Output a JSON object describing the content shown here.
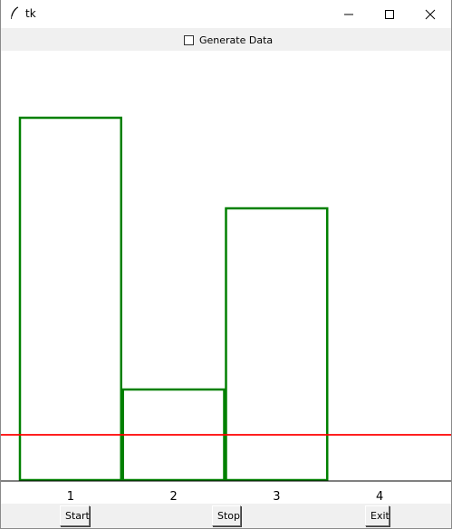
{
  "window": {
    "title": "tk"
  },
  "toolbar": {
    "generate_label": "Generate Data",
    "generate_checked": false
  },
  "buttons": {
    "start_label": "Start",
    "stop_label": "Stop",
    "exit_label": "Exit"
  },
  "chart_data": {
    "type": "bar",
    "categories": [
      "1",
      "2",
      "3",
      "4"
    ],
    "values": [
      8.0,
      2.0,
      6.0,
      0.0
    ],
    "threshold": 1.0,
    "ylim": [
      0,
      10.5
    ],
    "xlim": [
      0.5,
      4.5
    ],
    "title": "",
    "xlabel": "",
    "ylabel": "",
    "grid": false,
    "bar_color": "#008000",
    "bar_fill": "none",
    "threshold_color": "#ff0000"
  }
}
